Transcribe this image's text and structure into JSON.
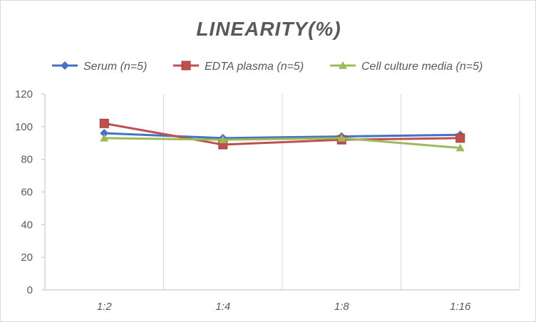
{
  "chart_data": {
    "type": "line",
    "title": "LINEARITY(%)",
    "xlabel": "",
    "ylabel": "",
    "categories": [
      "1:2",
      "1:4",
      "1:8",
      "1:16"
    ],
    "ylim": [
      0,
      120
    ],
    "yticks": [
      0,
      20,
      40,
      60,
      80,
      100,
      120
    ],
    "grid": "vertical",
    "legend_position": "top",
    "series": [
      {
        "name": "Serum (n=5)",
        "values": [
          96,
          93,
          94,
          95
        ],
        "color": "#4472c4",
        "marker": "diamond"
      },
      {
        "name": "EDTA plasma (n=5)",
        "values": [
          102,
          89,
          92,
          93
        ],
        "color": "#c0504d",
        "marker": "square"
      },
      {
        "name": "Cell culture media (n=5)",
        "values": [
          93,
          92,
          93,
          87
        ],
        "color": "#9bbb59",
        "marker": "triangle"
      }
    ]
  }
}
